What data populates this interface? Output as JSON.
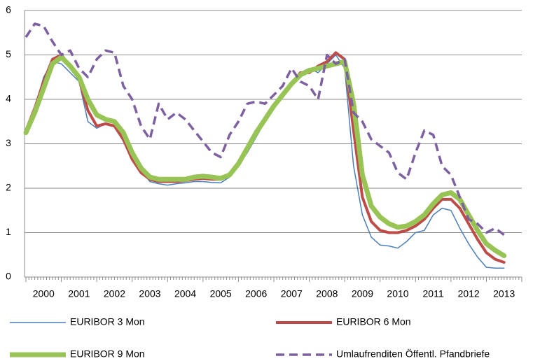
{
  "chart_data": {
    "type": "line",
    "x": [
      2000,
      2000.25,
      2000.5,
      2000.75,
      2001,
      2001.25,
      2001.5,
      2001.75,
      2002,
      2002.25,
      2002.5,
      2002.75,
      2003,
      2003.25,
      2003.5,
      2003.75,
      2004,
      2004.25,
      2004.5,
      2004.75,
      2005,
      2005.25,
      2005.5,
      2005.75,
      2006,
      2006.25,
      2006.5,
      2006.75,
      2007,
      2007.25,
      2007.5,
      2007.75,
      2008,
      2008.25,
      2008.5,
      2008.75,
      2009,
      2009.25,
      2009.5,
      2009.75,
      2010,
      2010.25,
      2010.5,
      2010.75,
      2011,
      2011.25,
      2011.5,
      2011.75,
      2012,
      2012.25,
      2012.5,
      2012.75,
      2013,
      2013.25,
      2013.5
    ],
    "series": [
      {
        "name": "EURIBOR 3 Mon",
        "color": "#4a7ebb",
        "width": 1.5,
        "values": [
          3.3,
          3.8,
          4.5,
          4.85,
          4.8,
          4.6,
          4.4,
          3.5,
          3.35,
          3.45,
          3.4,
          3.05,
          2.65,
          2.4,
          2.15,
          2.1,
          2.07,
          2.1,
          2.12,
          2.15,
          2.15,
          2.13,
          2.12,
          2.25,
          2.5,
          2.8,
          3.15,
          3.5,
          3.8,
          4.05,
          4.3,
          4.6,
          4.7,
          4.6,
          4.8,
          5.0,
          4.7,
          2.5,
          1.4,
          0.9,
          0.72,
          0.7,
          0.65,
          0.8,
          1.0,
          1.05,
          1.4,
          1.55,
          1.5,
          1.1,
          0.75,
          0.45,
          0.22,
          0.2,
          0.2
        ]
      },
      {
        "name": "EURIBOR 6 Mon",
        "color": "#be4b48",
        "width": 4,
        "values": [
          3.3,
          3.8,
          4.4,
          4.9,
          5.0,
          4.75,
          4.45,
          3.75,
          3.4,
          3.45,
          3.4,
          3.1,
          2.65,
          2.35,
          2.2,
          2.15,
          2.15,
          2.15,
          2.17,
          2.2,
          2.22,
          2.2,
          2.2,
          2.3,
          2.55,
          2.9,
          3.25,
          3.55,
          3.85,
          4.1,
          4.35,
          4.6,
          4.6,
          4.75,
          4.85,
          5.05,
          4.9,
          3.3,
          1.8,
          1.25,
          1.05,
          1.0,
          1.0,
          1.05,
          1.15,
          1.3,
          1.55,
          1.75,
          1.75,
          1.55,
          1.2,
          0.85,
          0.55,
          0.4,
          0.33
        ]
      },
      {
        "name": "EURIBOR 9 Mon",
        "color": "#98c455",
        "width": 7,
        "values": [
          3.25,
          3.7,
          4.25,
          4.8,
          4.95,
          4.75,
          4.5,
          4.0,
          3.65,
          3.55,
          3.5,
          3.25,
          2.8,
          2.45,
          2.25,
          2.2,
          2.2,
          2.2,
          2.2,
          2.25,
          2.27,
          2.25,
          2.22,
          2.3,
          2.55,
          2.9,
          3.25,
          3.55,
          3.85,
          4.1,
          4.35,
          4.55,
          4.65,
          4.7,
          4.75,
          4.8,
          4.85,
          3.9,
          2.3,
          1.6,
          1.35,
          1.2,
          1.12,
          1.15,
          1.25,
          1.4,
          1.65,
          1.85,
          1.9,
          1.75,
          1.4,
          1.05,
          0.75,
          0.6,
          0.48
        ]
      },
      {
        "name": "Umlaufrenditen Öffentl. Pfandbriefe",
        "color": "#7d60a0",
        "width": 3.5,
        "dashed": true,
        "values": [
          5.4,
          5.7,
          5.65,
          5.3,
          5.0,
          5.1,
          4.7,
          4.5,
          4.9,
          5.1,
          5.05,
          4.3,
          4.0,
          3.4,
          3.1,
          3.9,
          3.55,
          3.7,
          3.55,
          3.3,
          3.05,
          2.8,
          2.7,
          3.2,
          3.5,
          3.9,
          3.95,
          3.9,
          4.1,
          4.3,
          4.7,
          4.4,
          4.3,
          4.0,
          5.0,
          4.8,
          4.9,
          3.7,
          3.5,
          3.1,
          2.95,
          2.8,
          2.35,
          2.2,
          2.8,
          3.3,
          3.2,
          2.5,
          2.3,
          1.8,
          1.3,
          1.2,
          1.0,
          1.1,
          0.95
        ]
      }
    ],
    "xlim": [
      2000,
      2014
    ],
    "xticks": [
      {
        "value": 2000.5,
        "label": "2000"
      },
      {
        "value": 2001.5,
        "label": "2001"
      },
      {
        "value": 2002.5,
        "label": "2002"
      },
      {
        "value": 2003.5,
        "label": "2003"
      },
      {
        "value": 2004.5,
        "label": "2004"
      },
      {
        "value": 2005.5,
        "label": "2005"
      },
      {
        "value": 2006.5,
        "label": "2006"
      },
      {
        "value": 2007.5,
        "label": "2007"
      },
      {
        "value": 2008.5,
        "label": "2008"
      },
      {
        "value": 2009.5,
        "label": "2009"
      },
      {
        "value": 2010.5,
        "label": "2010"
      },
      {
        "value": 2011.5,
        "label": "2011"
      },
      {
        "value": 2012.5,
        "label": "2012"
      },
      {
        "value": 2013.5,
        "label": "2013"
      }
    ],
    "ylim": [
      0,
      6
    ],
    "yticks": [
      0,
      1,
      2,
      3,
      4,
      5,
      6
    ],
    "grid": true,
    "legend": "bottom"
  }
}
